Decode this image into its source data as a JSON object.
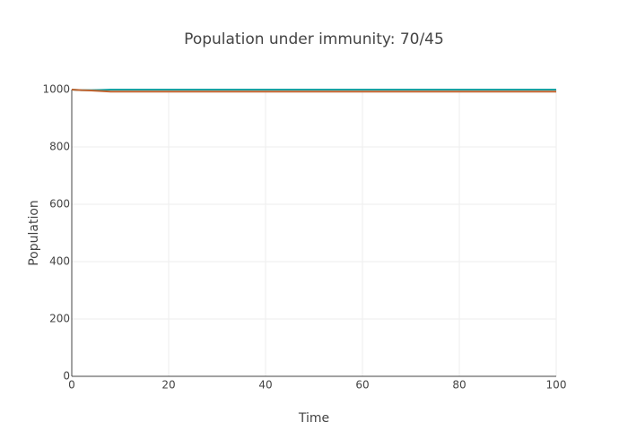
{
  "chart_data": {
    "type": "line",
    "title": "Population under immunity: 70/45",
    "x_label": "Time",
    "y_label": "Population",
    "x": [
      0,
      1,
      2,
      4,
      6,
      8,
      10,
      20,
      40,
      60,
      80,
      100
    ],
    "series": [
      {
        "color": "#17a2a2",
        "values": [
          1000,
          999,
          998,
          998,
          999,
          1000,
          1000,
          1000,
          1000,
          1000,
          1000,
          1000
        ]
      },
      {
        "color": "#c0622e",
        "values": [
          1000,
          999,
          998,
          997,
          995,
          993,
          993,
          993,
          993,
          993,
          993,
          993
        ]
      }
    ],
    "xlim": [
      0,
      100
    ],
    "xticks": [
      0,
      20,
      40,
      60,
      80,
      100
    ],
    "ylim": [
      0,
      1000
    ],
    "yticks": [
      0,
      200,
      400,
      600,
      800,
      1000
    ],
    "grid": true
  }
}
